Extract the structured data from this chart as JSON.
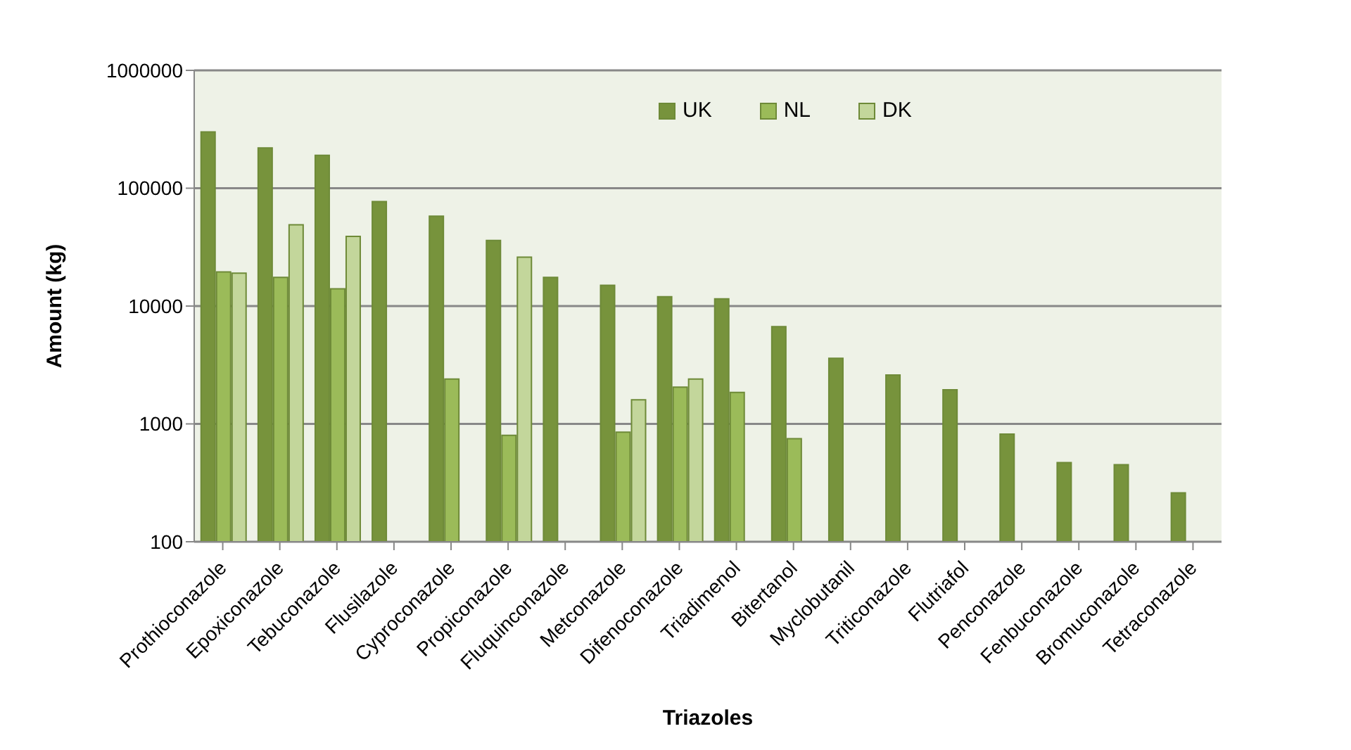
{
  "chart_data": {
    "type": "bar",
    "xlabel": "Triazoles",
    "ylabel": "Amount (kg)",
    "categories": [
      "Prothioconazole",
      "Epoxiconazole",
      "Tebuconazole",
      "Flusilazole",
      "Cyproconazole",
      "Propiconazole",
      "Fluquinconazole",
      "Metconazole",
      "Difenoconazole",
      "Triadimenol",
      "Bitertanol",
      "Myclobutanil",
      "Triticonazole",
      "Flutriafol",
      "Penconazole",
      "Fenbuconazole",
      "Bromuconazole",
      "Tetraconazole"
    ],
    "series": [
      {
        "name": "UK",
        "color": "#77933c",
        "values": [
          300000,
          220000,
          190000,
          77000,
          58000,
          36000,
          17500,
          15000,
          12000,
          11500,
          6700,
          3600,
          2600,
          1950,
          820,
          470,
          450,
          260
        ]
      },
      {
        "name": "NL",
        "color": "#9bbb59",
        "values": [
          19500,
          17500,
          14000,
          null,
          2400,
          800,
          null,
          850,
          2050,
          1850,
          750,
          null,
          null,
          null,
          null,
          null,
          null,
          null
        ]
      },
      {
        "name": "DK",
        "color": "#c3d69b",
        "values": [
          19000,
          49000,
          39000,
          null,
          null,
          26000,
          null,
          1600,
          2400,
          null,
          null,
          null,
          null,
          null,
          null,
          null,
          null,
          null
        ]
      }
    ],
    "log": true,
    "ylim": [
      100,
      1000000
    ],
    "yticks": [
      100,
      1000,
      10000,
      100000,
      1000000
    ],
    "grid": "y",
    "legend": "top"
  }
}
